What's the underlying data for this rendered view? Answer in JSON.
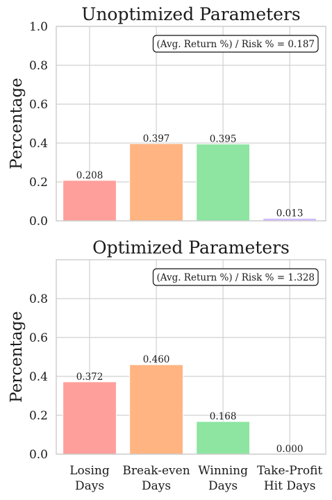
{
  "chart_data": [
    {
      "type": "bar",
      "title": "Unoptimized Parameters",
      "ylabel": "Percentage",
      "xlabel": "",
      "categories": [
        "Losing Days",
        "Break-even Days",
        "Winning Days",
        "Take-Profit Hit Days"
      ],
      "values": [
        0.208,
        0.397,
        0.395,
        0.013
      ],
      "data_labels": [
        "0.208",
        "0.397",
        "0.395",
        "0.013"
      ],
      "colors": [
        "#ff9f9b",
        "#ffb482",
        "#8de5a1",
        "#d0bbff"
      ],
      "ylim": [
        0,
        1.0
      ],
      "yticks": [
        0.0,
        0.2,
        0.4,
        0.6,
        0.8,
        1.0
      ],
      "ytick_labels": [
        "0.0",
        "0.2",
        "0.4",
        "0.6",
        "0.8",
        "1.0"
      ],
      "show_xtick_labels": false,
      "grid": true,
      "annotation": "(Avg. Return %) / Risk % = 0.187",
      "annotation_position": "top-right"
    },
    {
      "type": "bar",
      "title": "Optimized Parameters",
      "ylabel": "Percentage",
      "xlabel": "",
      "categories": [
        "Losing Days",
        "Break-even Days",
        "Winning Days",
        "Take-Profit Hit Days"
      ],
      "xtick_labels": [
        [
          "Losing",
          "Days"
        ],
        [
          "Break-even",
          "Days"
        ],
        [
          "Winning",
          "Days"
        ],
        [
          "Take-Profit",
          "Hit Days"
        ]
      ],
      "values": [
        0.372,
        0.46,
        0.168,
        0.0
      ],
      "data_labels": [
        "0.372",
        "0.460",
        "0.168",
        "0.000"
      ],
      "colors": [
        "#ff9f9b",
        "#ffb482",
        "#8de5a1",
        "#d0bbff"
      ],
      "ylim": [
        0,
        1.0
      ],
      "yticks": [
        0.0,
        0.2,
        0.4,
        0.6,
        0.8
      ],
      "ytick_labels": [
        "0.0",
        "0.2",
        "0.4",
        "0.6",
        "0.8"
      ],
      "show_xtick_labels": true,
      "grid": true,
      "annotation": "(Avg. Return %) / Risk % = 1.328",
      "annotation_position": "top-right"
    }
  ]
}
